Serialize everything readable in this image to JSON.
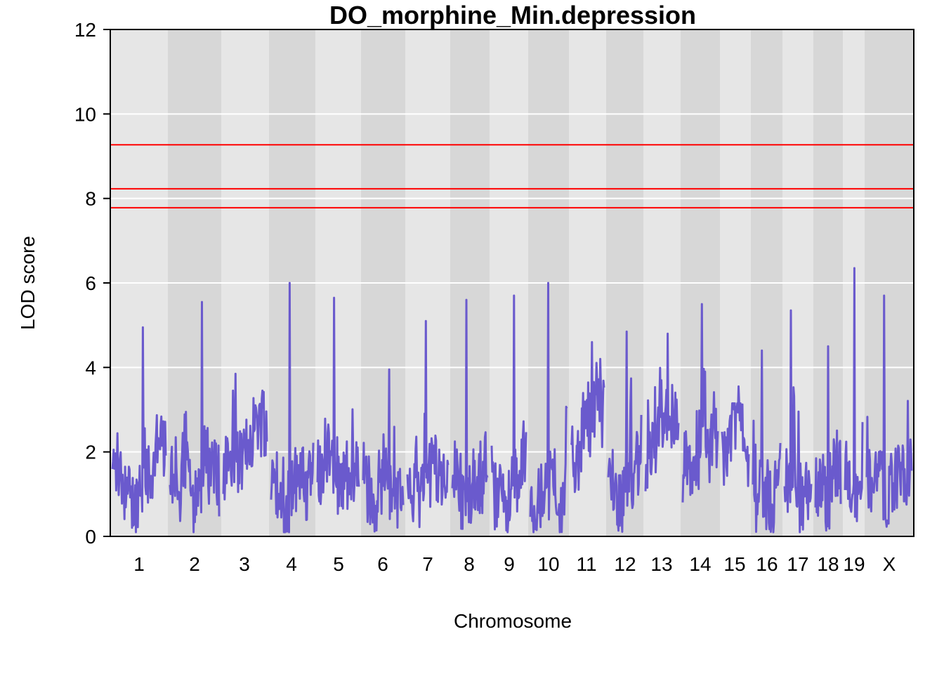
{
  "chart_data": {
    "type": "line",
    "title": "DO_morphine_Min.depression",
    "xlabel": "Chromosome",
    "ylabel": "LOD score",
    "ylim": [
      0,
      12
    ],
    "yticks": [
      0,
      2,
      4,
      6,
      8,
      10,
      12
    ],
    "grid": true,
    "thresholds": [
      9.27,
      8.23,
      7.78
    ],
    "threshold_color": "#ff0000",
    "line_color": "#6a5acd",
    "band_colors": [
      "#e6e6e6",
      "#d7d7d7"
    ],
    "chromosomes": [
      {
        "label": "1",
        "peak": 4.95
      },
      {
        "label": "2",
        "peak": 5.55
      },
      {
        "label": "3",
        "peak": 3.85
      },
      {
        "label": "4",
        "peak": 6.0
      },
      {
        "label": "5",
        "peak": 5.65
      },
      {
        "label": "6",
        "peak": 3.95
      },
      {
        "label": "7",
        "peak": 5.1
      },
      {
        "label": "8",
        "peak": 5.6
      },
      {
        "label": "9",
        "peak": 5.7
      },
      {
        "label": "10",
        "peak": 6.0
      },
      {
        "label": "11",
        "peak": 4.6
      },
      {
        "label": "12",
        "peak": 4.85
      },
      {
        "label": "13",
        "peak": 4.8
      },
      {
        "label": "14",
        "peak": 5.5
      },
      {
        "label": "15",
        "peak": 3.55
      },
      {
        "label": "16",
        "peak": 4.4
      },
      {
        "label": "17",
        "peak": 5.35
      },
      {
        "label": "18",
        "peak": 4.5
      },
      {
        "label": "19",
        "peak": 6.35
      },
      {
        "label": "X",
        "peak": 5.7
      }
    ]
  }
}
